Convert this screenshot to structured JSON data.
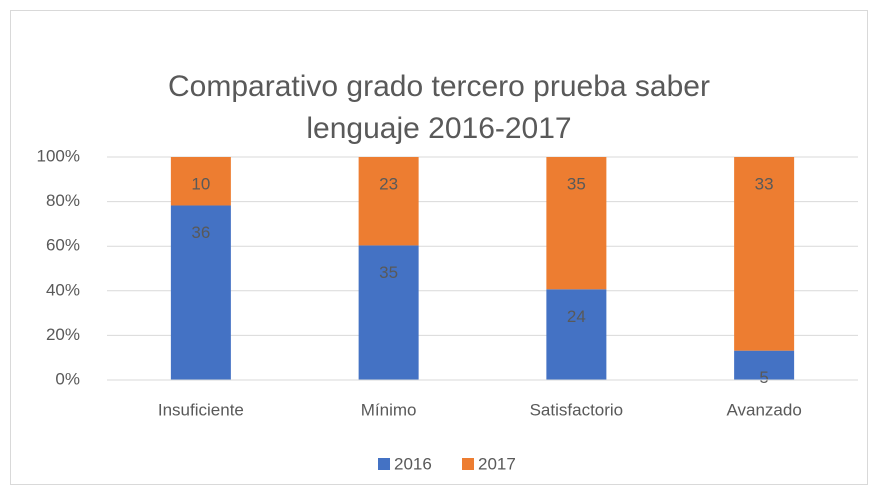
{
  "chart_data": {
    "type": "bar",
    "stacking": "percent",
    "title": "Comparativo grado tercero prueba saber lenguaje 2016-2017",
    "categories": [
      "Insuficiente",
      "Mínimo",
      "Satisfactorio",
      "Avanzado"
    ],
    "series": [
      {
        "name": "2016",
        "color": "#4472c4",
        "values": [
          36,
          35,
          24,
          5
        ]
      },
      {
        "name": "2017",
        "color": "#ed7d31",
        "values": [
          10,
          23,
          35,
          33
        ]
      }
    ],
    "ylim": [
      0,
      100
    ],
    "yticks": [
      {
        "value": 0,
        "label": "0%"
      },
      {
        "value": 20,
        "label": "20%"
      },
      {
        "value": 40,
        "label": "40%"
      },
      {
        "value": 60,
        "label": "60%"
      },
      {
        "value": 80,
        "label": "80%"
      },
      {
        "value": 100,
        "label": "100%"
      }
    ],
    "grid": true,
    "legend": "bottom"
  }
}
